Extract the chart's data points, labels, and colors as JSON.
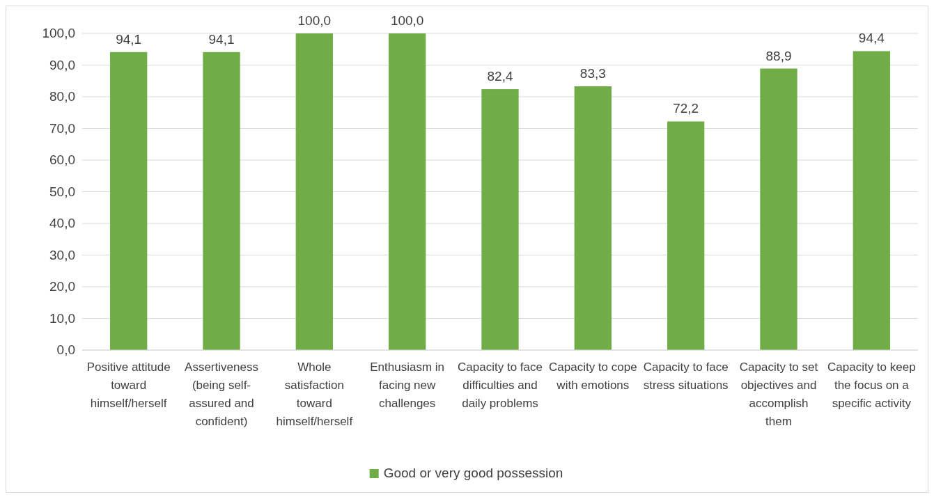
{
  "chart_data": {
    "type": "bar",
    "categories": [
      "Positive attitude toward himself/herself",
      "Assertiveness (being self-assured and confident)",
      "Whole satisfaction toward himself/herself",
      "Enthusiasm in facing new challenges",
      "Capacity to face difficulties and daily problems",
      "Capacity to cope with emotions",
      "Capacity to face stress situations",
      "Capacity to set objectives and accomplish them",
      "Capacity to keep the focus on a specific activity"
    ],
    "series": [
      {
        "name": "Good or very good possession",
        "color": "#70ad47",
        "values": [
          94.1,
          94.1,
          100,
          100,
          82.4,
          83.3,
          72.2,
          88.9,
          94.4
        ],
        "value_labels": [
          "94,1",
          "94,1",
          "100,0",
          "100,0",
          "82,4",
          "83,3",
          "72,2",
          "88,9",
          "94,4"
        ]
      }
    ],
    "ylim": [
      0,
      100
    ],
    "yticks": [
      {
        "value": 0,
        "label": "0,0"
      },
      {
        "value": 10,
        "label": "10,0"
      },
      {
        "value": 20,
        "label": "20,0"
      },
      {
        "value": 30,
        "label": "30,0"
      },
      {
        "value": 40,
        "label": "40,0"
      },
      {
        "value": 50,
        "label": "50,0"
      },
      {
        "value": 60,
        "label": "60,0"
      },
      {
        "value": 70,
        "label": "70,0"
      },
      {
        "value": 80,
        "label": "80,0"
      },
      {
        "value": 90,
        "label": "90,0"
      },
      {
        "value": 100,
        "label": "100,0"
      }
    ],
    "grid": "y",
    "legend": "bottom"
  }
}
